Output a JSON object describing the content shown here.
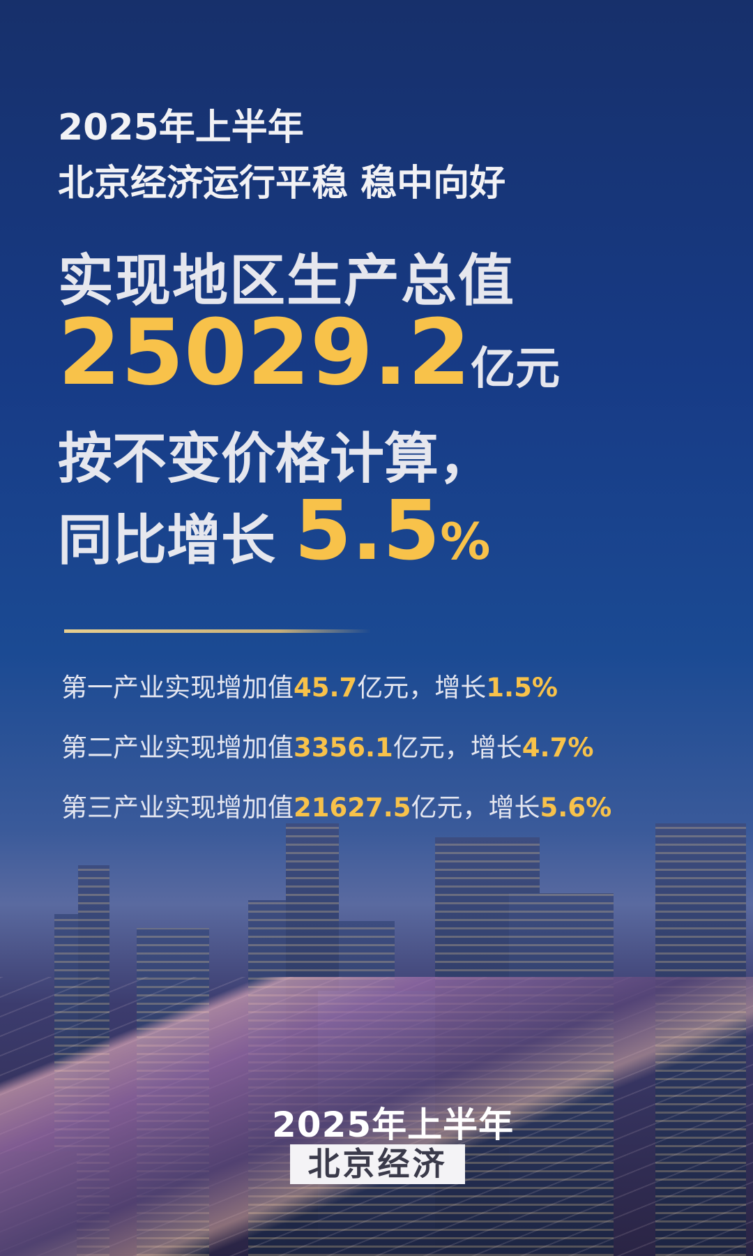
{
  "title": {
    "line1": "2025年上半年",
    "line2": "北京经济运行平稳 稳中向好"
  },
  "headline": {
    "gdp_label": "实现地区生产总值",
    "gdp_value": "25029.2",
    "gdp_unit": "亿元",
    "method": "按不变价格计算，",
    "growth_label": "同比增长",
    "growth_value": "5.5",
    "growth_unit": "%"
  },
  "industries": [
    {
      "prefix": "第一产业实现增加值",
      "value": "45.7",
      "mid": "亿元，增长",
      "growth": "1.5%"
    },
    {
      "prefix": "第二产业实现增加值",
      "value": "3356.1",
      "mid": "亿元，增长",
      "growth": "4.7%"
    },
    {
      "prefix": "第三产业实现增加值",
      "value": "21627.5",
      "mid": "亿元，增长",
      "growth": "5.6%"
    }
  ],
  "badge": {
    "year": "2025年上半年",
    "name": "北京经济"
  },
  "colors": {
    "accent": "#f8c24a",
    "background": "#173b86"
  }
}
